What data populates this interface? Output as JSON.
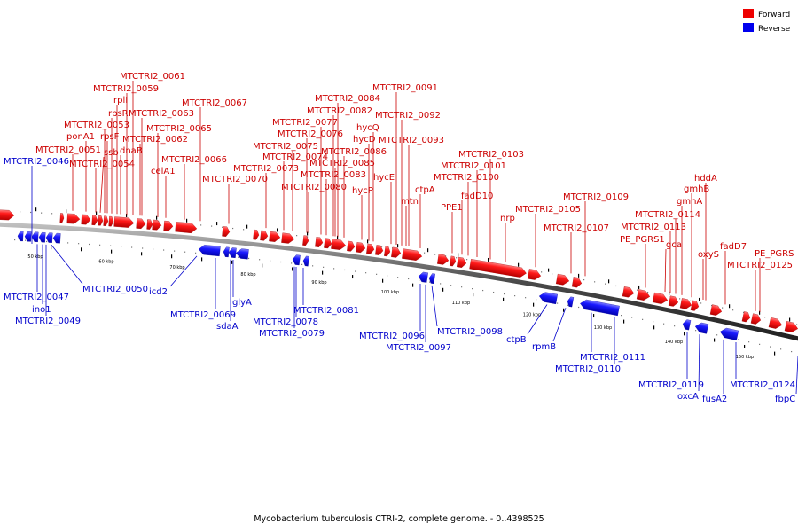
{
  "legend": {
    "forward_label": "Forward",
    "reverse_label": "Reverse",
    "forward_color": "#ee0000",
    "reverse_color": "#0000ee"
  },
  "caption": "Mycobacterium tuberculosis CTRI-2, complete genome. - 0..4398525",
  "scale": {
    "ticks": [
      {
        "kbp": 50,
        "label": "50 kbp"
      },
      {
        "kbp": 60,
        "label": "60 kbp"
      },
      {
        "kbp": 70,
        "label": "70 kbp"
      },
      {
        "kbp": 80,
        "label": "80 kbp"
      },
      {
        "kbp": 90,
        "label": "90 kbp"
      },
      {
        "kbp": 100,
        "label": "100 kbp"
      },
      {
        "kbp": 110,
        "label": "110 kbp"
      },
      {
        "kbp": 120,
        "label": "120 kbp"
      },
      {
        "kbp": 130,
        "label": "130 kbp"
      },
      {
        "kbp": 140,
        "label": "140 kbp"
      },
      {
        "kbp": 150,
        "label": "150 kbp"
      }
    ]
  },
  "forward_labels": [
    "MTCTRI2_0061",
    "MTCTRI2_0059",
    "rplI",
    "rpsR",
    "MTCTRI2_0063",
    "MTCTRI2_0067",
    "MTCTRI2_0053",
    "MTCTRI2_0065",
    "ponA1",
    "rpsF",
    "MTCTRI2_0062",
    "MTCTRI2_0051",
    "ssb",
    "dnaB",
    "celA1",
    "MTCTRI2_0066",
    "MTCTRI2_0054",
    "MTCTRI2_0070",
    "MTCTRI2_0091",
    "MTCTRI2_0084",
    "MTCTRI2_0082",
    "MTCTRI2_0092",
    "MTCTRI2_0077",
    "hycQ",
    "MTCTRI2_0076",
    "hycD",
    "MTCTRI2_0093",
    "MTCTRI2_0075",
    "MTCTRI2_0086",
    "MTCTRI2_0074",
    "MTCTRI2_0085",
    "MTCTRI2_0073",
    "MTCTRI2_0083",
    "hycE",
    "MTCTRI2_0080",
    "hycP",
    "ctpA",
    "mtn",
    "MTCTRI2_0103",
    "MTCTRI2_0101",
    "MTCTRI2_0100",
    "fadD10",
    "PPE1",
    "nrp",
    "MTCTRI2_0105",
    "MTCTRI2_0109",
    "MTCTRI2_0107",
    "hddA",
    "gmhB",
    "gmhA",
    "MTCTRI2_0114",
    "MTCTRI2_0113",
    "PE_PGRS1",
    "gca",
    "oxyS",
    "fadD7",
    "PE_PGRS",
    "MTCTRI2_0125"
  ],
  "reverse_labels": [
    "MTCTRI2_0046",
    "MTCTRI2_0047",
    "ino1",
    "MTCTRI2_0049",
    "MTCTRI2_0050",
    "icd2",
    "MTCTRI2_0069",
    "sdaA",
    "glyA",
    "MTCTRI2_0078",
    "MTCTRI2_0079",
    "MTCTRI2_0081",
    "MTCTRI2_0096",
    "MTCTRI2_0097",
    "MTCTRI2_0098",
    "ctpB",
    "rpmB",
    "MTCTRI2_0111",
    "MTCTRI2_0110",
    "MTCTRI2_0119",
    "oxcA",
    "fusA2",
    "MTCTRI2_0124",
    "fbpC"
  ]
}
